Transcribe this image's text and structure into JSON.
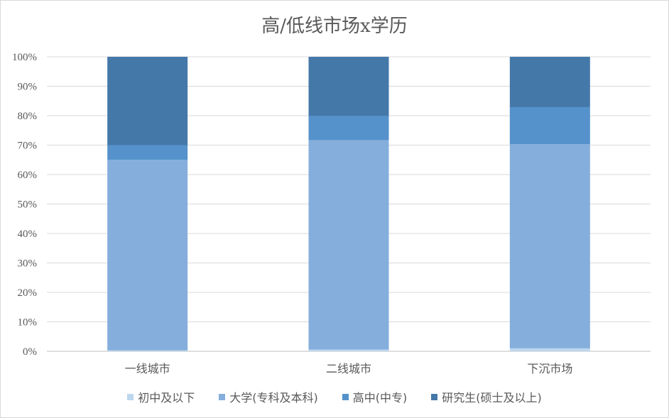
{
  "chart_data": {
    "type": "bar",
    "stacked": true,
    "percent_stacked": true,
    "title": "高/低线市场x学历",
    "categories": [
      "一线城市",
      "二线城市",
      "下沉市场"
    ],
    "series": [
      {
        "name": "初中及以下",
        "color": "#bdd7ee",
        "values": [
          0.3,
          0.6,
          1.0
        ]
      },
      {
        "name": "大学(专科及本科)",
        "color": "#85aedc",
        "values": [
          64.7,
          71.1,
          69.3
        ]
      },
      {
        "name": "高中(中专)",
        "color": "#5592cb",
        "values": [
          5.0,
          8.2,
          12.6
        ]
      },
      {
        "name": "研究生(硕士及以上)",
        "color": "#4478a9",
        "values": [
          30.0,
          20.1,
          17.1
        ]
      }
    ],
    "y_ticks": [
      "0%",
      "10%",
      "20%",
      "30%",
      "40%",
      "50%",
      "60%",
      "70%",
      "80%",
      "90%",
      "100%"
    ],
    "ylim": [
      0,
      100
    ],
    "grid": true,
    "legend_position": "bottom"
  }
}
